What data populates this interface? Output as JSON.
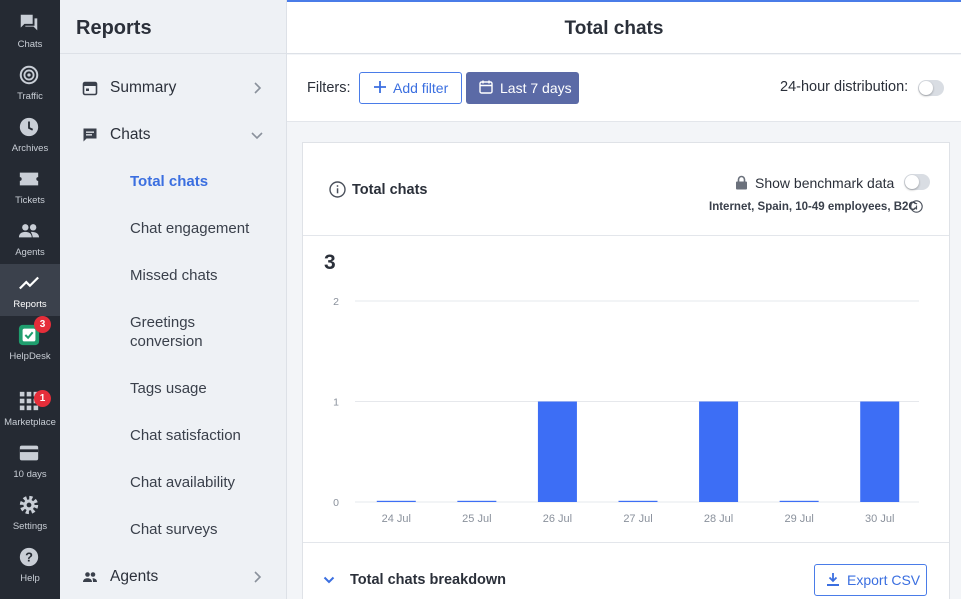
{
  "rail": {
    "items": [
      {
        "label": "Chats",
        "icon": "chats-icon"
      },
      {
        "label": "Traffic",
        "icon": "traffic-icon"
      },
      {
        "label": "Archives",
        "icon": "archives-icon"
      },
      {
        "label": "Tickets",
        "icon": "tickets-icon"
      },
      {
        "label": "Agents",
        "icon": "agents-icon"
      },
      {
        "label": "Reports",
        "icon": "reports-icon",
        "active": true
      },
      {
        "label": "HelpDesk",
        "icon": "helpdesk-icon",
        "badge": "3"
      },
      {
        "label": "Marketplace",
        "icon": "marketplace-icon",
        "badge": "1"
      },
      {
        "label": "10 days",
        "icon": "billing-icon"
      },
      {
        "label": "Settings",
        "icon": "settings-icon"
      },
      {
        "label": "Help",
        "icon": "help-icon"
      }
    ]
  },
  "sidebar": {
    "title": "Reports",
    "sections": [
      {
        "label": "Summary",
        "icon": "calendar-icon",
        "expanded": false
      },
      {
        "label": "Chats",
        "icon": "chat-bubble-icon",
        "expanded": true
      },
      {
        "label": "Agents",
        "icon": "agents-icon",
        "expanded": false
      }
    ],
    "chat_items": [
      {
        "label": "Total chats",
        "active": true
      },
      {
        "label": "Chat engagement"
      },
      {
        "label": "Missed chats"
      },
      {
        "label": "Greetings conversion"
      },
      {
        "label": "Tags usage"
      },
      {
        "label": "Chat satisfaction"
      },
      {
        "label": "Chat availability"
      },
      {
        "label": "Chat surveys"
      }
    ]
  },
  "main": {
    "title": "Total chats",
    "filters": {
      "label": "Filters:",
      "add_filter": "Add filter",
      "date_range": "Last 7 days",
      "distribution_label": "24-hour distribution:",
      "distribution_on": false
    },
    "card": {
      "title": "Total chats",
      "benchmark_label": "Show benchmark data",
      "benchmark_on": false,
      "benchmark_segment": "Internet, Spain, 10-49 employees, B2C",
      "total": "3",
      "breakdown_title": "Total chats breakdown",
      "export_label": "Export CSV"
    }
  },
  "colors": {
    "accent": "#3b6fe0",
    "bar": "#3d6ef5",
    "rail_bg": "#252a33",
    "date_button": "#5b6aa6",
    "badge": "#e52e3a"
  },
  "chart_data": {
    "type": "bar",
    "categories": [
      "24 Jul",
      "25 Jul",
      "26 Jul",
      "27 Jul",
      "28 Jul",
      "29 Jul",
      "30 Jul"
    ],
    "values": [
      0,
      0,
      1,
      0,
      1,
      0,
      1
    ],
    "y_ticks": [
      "0",
      "1",
      "2"
    ],
    "ylim": [
      0,
      2
    ],
    "title": "",
    "xlabel": "",
    "ylabel": "",
    "grid": true
  }
}
